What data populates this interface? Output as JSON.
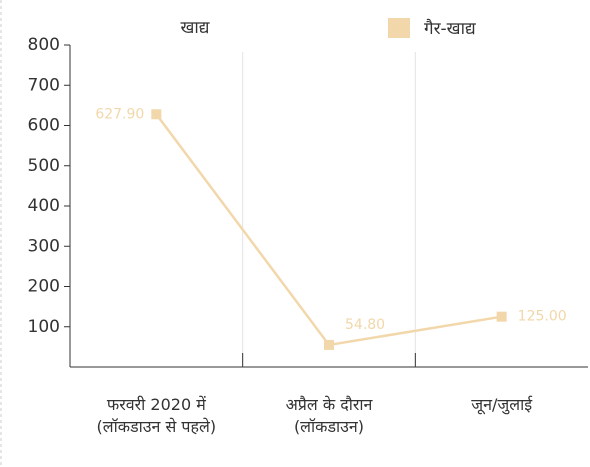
{
  "chart_data": {
    "type": "line",
    "title": "खाद्य",
    "categories": [
      "फरवरी 2020 में (लॉकडाउन से पहले)",
      "अप्रैल के दौरान (लॉकडाउन)",
      "जून/जुलाई"
    ],
    "series": [
      {
        "name": "गैर-खाद्य",
        "color": "#f2d7aa",
        "values": [
          627.9,
          54.8,
          125.0
        ],
        "value_labels": [
          "627.90",
          "54.80",
          "125.00"
        ]
      }
    ],
    "ylim": [
      0,
      800
    ],
    "yticks": [
      100,
      200,
      300,
      400,
      500,
      600,
      700,
      800
    ]
  }
}
